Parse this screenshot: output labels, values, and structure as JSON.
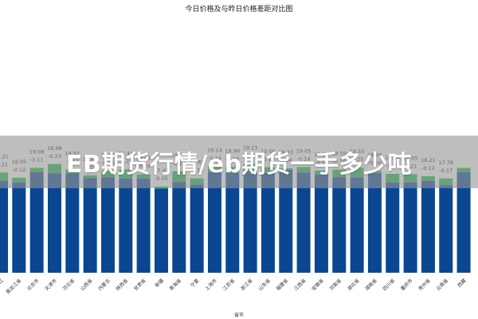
{
  "banner": {
    "text": "EB期货行情/eb期货一手多少吨"
  },
  "colors": {
    "today": "#0b4791",
    "diff": "#27b34a",
    "banner_bg": "#8f8f8f"
  },
  "chart_data": {
    "type": "bar",
    "title": "今日价格及与昨日价格差距对比图",
    "xlabel": "省市",
    "ylabel": "",
    "grid": false,
    "categories": [
      "黑龙江",
      "黑龙江省",
      "北京市",
      "天津市",
      "河北省",
      "山西省",
      "内蒙古",
      "陕西省",
      "甘肃省",
      "新疆",
      "青海省",
      "宁夏",
      "上海市",
      "江苏省",
      "浙江省",
      "山东省",
      "福建省",
      "江西省",
      "安徽省",
      "河南省",
      "湖北省",
      "湖南省",
      "四川省",
      "重庆市",
      "贵州省",
      "云南省",
      "西藏"
    ],
    "series": [
      {
        "name": "",
        "values": [
          18.21,
          18.05,
          19.08,
          18.98,
          18.92,
          18.5,
          18.56,
          18.44,
          18.47,
          17.45,
          18.1,
          17.83,
          19.14,
          18.98,
          19.13,
          19.06,
          19.33,
          19.05,
          18.86,
          18.59,
          18.55,
          18.96,
          18.04,
          18.05,
          18.21,
          17.78,
          19.08
        ]
      },
      {
        "name": "",
        "values": [
          -0.21,
          -0.12,
          -0.11,
          -0.23,
          -0.11,
          -0.07,
          -0.16,
          -0.23,
          -0.1,
          -0.05,
          -0.27,
          -0.16,
          -0.14,
          -0.16,
          -0.2,
          -0.13,
          -0.04,
          -0.14,
          -0.1,
          -0.19,
          -0.25,
          -0.06,
          -0.22,
          -0.21,
          -0.12,
          -0.17,
          -0.11
        ]
      }
    ],
    "label_pairs": [
      [
        "18.21",
        "-0.21"
      ],
      [
        "18.05",
        "-0.12"
      ],
      [
        "19.08",
        "-0.11"
      ],
      [
        "18.98",
        "-0.23"
      ],
      [
        "18.92",
        "-0.11"
      ],
      [
        "18.50",
        "-0.07"
      ],
      [
        "18.56",
        "-0.16"
      ],
      [
        "18.44",
        "-0.23"
      ],
      [
        "18.47",
        "-0.10"
      ],
      [
        "17.45",
        "-0.05"
      ],
      [
        "18.10",
        "-0.27"
      ],
      [
        "17.83",
        "-0.16"
      ],
      [
        "19.14",
        "-0.14"
      ],
      [
        "18.98",
        "-0.16"
      ],
      [
        "19.13",
        "-0.20"
      ],
      [
        "19.06",
        "-0.13"
      ],
      [
        "19.33",
        "-0.04"
      ],
      [
        "19.05",
        "-0.14"
      ],
      [
        "18.86",
        "-0.10"
      ],
      [
        "18.59",
        "-0.19"
      ],
      [
        "18.55",
        "-0.25"
      ],
      [
        "18.96",
        "-0.06"
      ],
      [
        "18.04",
        "-0.22"
      ],
      [
        "18.05",
        "-0.21"
      ],
      [
        "18.21",
        "-0.12"
      ],
      [
        "17.78",
        "-0.17"
      ],
      [
        "",
        ""
      ]
    ]
  }
}
